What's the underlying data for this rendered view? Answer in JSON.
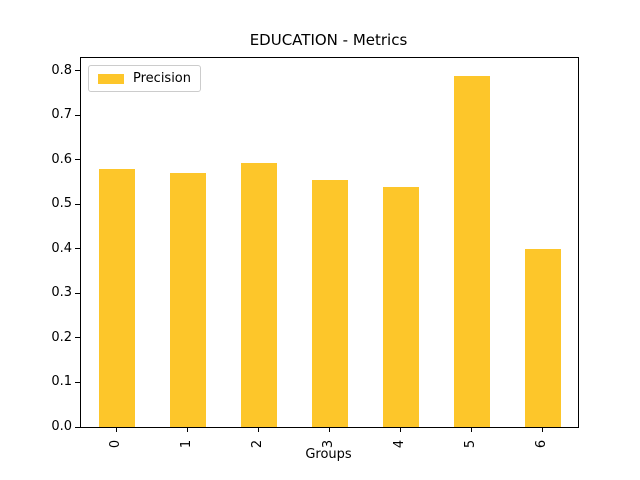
{
  "figure": {
    "background": "#ffffff",
    "text_color": "#000000",
    "spine_color": "#000000"
  },
  "chart_data": {
    "type": "bar",
    "title": "EDUCATION - Metrics",
    "xlabel": "Groups",
    "ylabel": "",
    "categories": [
      "0",
      "1",
      "2",
      "3",
      "4",
      "5",
      "6"
    ],
    "series": [
      {
        "name": "Precision",
        "color": "#FDC62A",
        "values": [
          0.579,
          0.57,
          0.593,
          0.555,
          0.539,
          0.788,
          0.399
        ]
      }
    ],
    "yticks": [
      "0.0",
      "0.1",
      "0.2",
      "0.3",
      "0.4",
      "0.5",
      "0.6",
      "0.7",
      "0.8"
    ],
    "ylim": [
      0,
      0.829
    ],
    "xtick_rotation": 90,
    "grid": false,
    "legend": {
      "position": "upper-left",
      "entries": [
        "Precision"
      ],
      "border_color": "#cccccc"
    }
  }
}
